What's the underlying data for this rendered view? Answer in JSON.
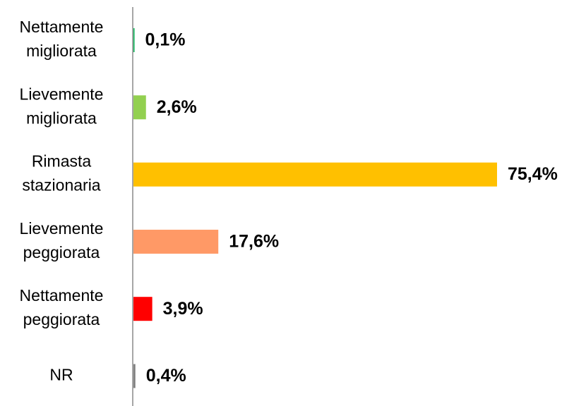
{
  "chart_data": {
    "type": "hbar",
    "categories": [
      "Nettamente migliorata",
      "Lievemente migliorata",
      "Rimasta stazionaria",
      "Lievemente peggiorata",
      "Nettamente peggiorata",
      "NR"
    ],
    "values": [
      0.1,
      2.6,
      75.4,
      17.6,
      3.9,
      0.4
    ],
    "value_labels": [
      "0,1%",
      "2,6%",
      "75,4%",
      "17,6%",
      "3,9%",
      "0,4%"
    ],
    "colors": [
      "#00b050",
      "#92d050",
      "#ffc000",
      "#ff9966",
      "#ff0000",
      "#808080"
    ]
  }
}
